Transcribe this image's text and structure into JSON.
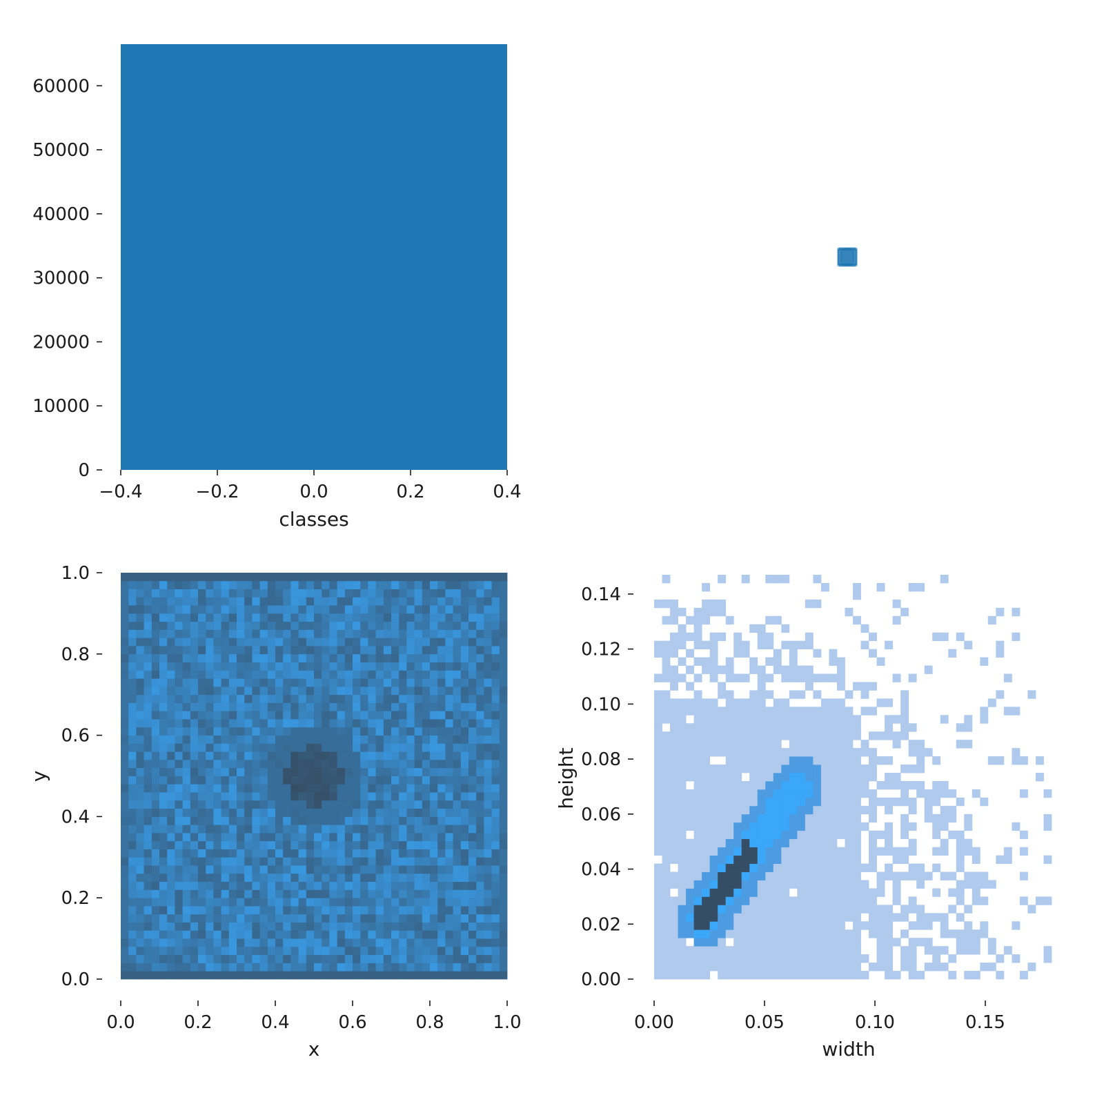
{
  "colors": {
    "bar": "#1f77b4",
    "hist_dark": "#364e65",
    "hist_light": "#3aa7f9",
    "hist_pale": "#afcaed",
    "hist_mid": "#4d9be0",
    "box_fill": "#1f77b4"
  },
  "chart_data": [
    {
      "type": "bar",
      "panel": "top-left",
      "categories": [
        0
      ],
      "values": [
        66500
      ],
      "bar_width": 0.8,
      "xlabel": "classes",
      "ylabel": "",
      "xlim": [
        -0.4,
        0.4
      ],
      "ylim": [
        0,
        66500
      ],
      "xticks": [
        -0.4,
        -0.2,
        0.0,
        0.2,
        0.4
      ],
      "xtick_labels": [
        "−0.4",
        "−0.2",
        "0.0",
        "0.2",
        "0.4"
      ],
      "yticks": [
        0,
        10000,
        20000,
        30000,
        40000,
        50000,
        60000
      ],
      "ytick_labels": [
        "0",
        "10000",
        "20000",
        "30000",
        "40000",
        "50000",
        "60000"
      ],
      "grid": false
    },
    {
      "type": "scatter",
      "panel": "top-right",
      "description_kind": "overlaid label boxes",
      "center": [
        0.5,
        0.5
      ],
      "typical_size": [
        0.035,
        0.04
      ],
      "grid": false
    },
    {
      "type": "heatmap",
      "panel": "bottom-left",
      "xlabel": "x",
      "ylabel": "y",
      "xlim": [
        0,
        1
      ],
      "ylim": [
        0,
        1
      ],
      "bins": 50,
      "xticks": [
        0.0,
        0.2,
        0.4,
        0.6,
        0.8,
        1.0
      ],
      "xtick_labels": [
        "0.0",
        "0.2",
        "0.4",
        "0.6",
        "0.8",
        "1.0"
      ],
      "yticks": [
        0.0,
        0.2,
        0.4,
        0.6,
        0.8,
        1.0
      ],
      "ytick_labels": [
        "0.0",
        "0.2",
        "0.4",
        "0.6",
        "0.8",
        "1.0"
      ],
      "center_dense_region": [
        0.5,
        0.5
      ],
      "grid": false
    },
    {
      "type": "heatmap",
      "panel": "bottom-right",
      "xlabel": "width",
      "ylabel": "height",
      "xlim": [
        0,
        0.175
      ],
      "ylim": [
        0,
        0.148
      ],
      "bins": 50,
      "xticks": [
        0.0,
        0.05,
        0.1,
        0.15
      ],
      "xtick_labels": [
        "0.00",
        "0.05",
        "0.10",
        "0.15"
      ],
      "yticks": [
        0.0,
        0.02,
        0.04,
        0.06,
        0.08,
        0.1,
        0.12,
        0.14
      ],
      "ytick_labels": [
        "0.00",
        "0.02",
        "0.04",
        "0.06",
        "0.08",
        "0.10",
        "0.12",
        "0.14"
      ],
      "dense_ridge": {
        "start": [
          0.022,
          0.022
        ],
        "end": [
          0.065,
          0.07
        ]
      },
      "grid": false
    }
  ]
}
